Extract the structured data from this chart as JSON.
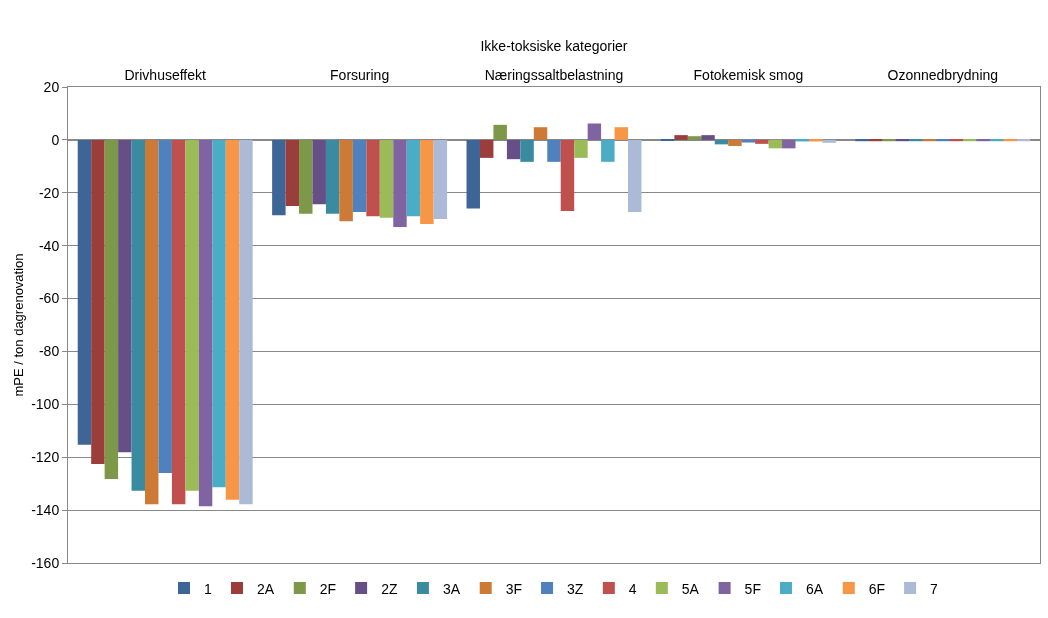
{
  "chart_data": {
    "type": "bar",
    "xlabel": "Ikke-toksiske kategorier",
    "ylabel": "mPE / ton dagrenovation",
    "categories": [
      "Drivhuseffekt",
      "Forsuring",
      "Næringssaltbelastning",
      "Fotokemisk smog",
      "Ozonnedbrydning"
    ],
    "ylim": [
      -160,
      20
    ],
    "yticks": [
      -160,
      -140,
      -120,
      -100,
      -80,
      -60,
      -40,
      -20,
      0,
      20
    ],
    "grid": "y",
    "legend": "bottom",
    "series": [
      {
        "name": "1",
        "color": "#3d6696",
        "values": [
          -115.3,
          -28.5,
          -25.9,
          -0.2,
          -0.5
        ]
      },
      {
        "name": "2A",
        "color": "#9b3d3b",
        "values": [
          -122.6,
          -25,
          -6.8,
          1.8,
          -0.5
        ]
      },
      {
        "name": "2F",
        "color": "#7c9848",
        "values": [
          -128.2,
          -27.9,
          5.7,
          1.4,
          -0.5
        ]
      },
      {
        "name": "2Z",
        "color": "#664f86",
        "values": [
          -118.1,
          -24.3,
          -7.3,
          1.8,
          -0.5
        ]
      },
      {
        "name": "3A",
        "color": "#3a8aa0",
        "values": [
          -132.7,
          -27.9,
          -8.3,
          -1.7,
          -0.5
        ]
      },
      {
        "name": "3F",
        "color": "#cd7a36",
        "values": [
          -137.8,
          -30.8,
          4.8,
          -2.3,
          -0.5
        ]
      },
      {
        "name": "3Z",
        "color": "#4f81bd",
        "values": [
          -126,
          -27.3,
          -8.3,
          -1.0,
          -0.5
        ]
      },
      {
        "name": "4",
        "color": "#c0504d",
        "values": [
          -137.8,
          -28.9,
          -26.9,
          -1.5,
          -0.5
        ]
      },
      {
        "name": "5A",
        "color": "#9bbb59",
        "values": [
          -132.7,
          -29.4,
          -6.8,
          -3.2,
          -0.5
        ]
      },
      {
        "name": "5F",
        "color": "#8064a2",
        "values": [
          -138.5,
          -32.9,
          6.2,
          -3.2,
          -0.5
        ]
      },
      {
        "name": "6A",
        "color": "#4bacc6",
        "values": [
          -131.4,
          -28.9,
          -8.3,
          -0.6,
          -0.5
        ]
      },
      {
        "name": "6F",
        "color": "#f79646",
        "values": [
          -136.1,
          -31.8,
          4.8,
          -0.6,
          -0.5
        ]
      },
      {
        "name": "7",
        "color": "#aabad7",
        "values": [
          -137.8,
          -29.9,
          -27.3,
          -1.1,
          -0.5
        ]
      }
    ]
  }
}
